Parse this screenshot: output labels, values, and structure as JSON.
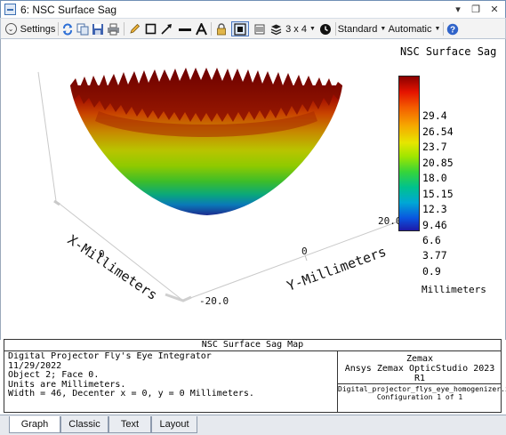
{
  "window": {
    "title": "6: NSC Surface Sag",
    "controls": {
      "dropdown": "▾",
      "restore": "❐",
      "close": "✕"
    }
  },
  "toolbar": {
    "settings_label": "Settings",
    "layout_label": "3 x 4",
    "standard_label": "Standard",
    "automatic_label": "Automatic",
    "icons": [
      "settings-chevron-icon",
      "refresh-icon",
      "copy-icon",
      "save-icon",
      "print-icon",
      "pencil-icon",
      "rectangle-icon",
      "arrow-icon",
      "line-icon",
      "text-icon",
      "lock-icon",
      "fit-icon",
      "layers-icon",
      "stack-icon",
      "clock-icon",
      "help-icon"
    ]
  },
  "plot": {
    "x_axis_label": "X-Millimeters",
    "y_axis_label": "Y-Millimeters",
    "x_ticks": [
      "0",
      "-20.0"
    ],
    "y_ticks": [
      "0",
      "20.0"
    ]
  },
  "legend": {
    "title": "NSC Surface Sag",
    "ticks": [
      "29.4",
      "26.54",
      "23.7",
      "20.85",
      "18.0",
      "15.15",
      "12.3",
      "9.46",
      "6.6",
      "3.77",
      "0.9"
    ],
    "units": "Millimeters",
    "colors": {
      "max": "#8a0000",
      "mid": "#e6e600",
      "min": "#1e1aa8"
    }
  },
  "info": {
    "title": "NSC Surface Sag Map",
    "left_lines": [
      "Digital Projector Fly's Eye Integrator",
      "11/29/2022",
      "Object 2; Face 0.",
      "",
      "Units are Millimeters.",
      "",
      "Width = 46, Decenter x = 0, y = 0 Millimeters."
    ],
    "company": "Zemax",
    "product": "Ansys Zemax OpticStudio 2023 R1",
    "file": "Digital_projector_flys_eye_homogenizer.zos",
    "configuration": "Configuration 1 of 1"
  },
  "tabs": [
    {
      "label": "Graph",
      "active": true
    },
    {
      "label": "Classic",
      "active": false
    },
    {
      "label": "Text",
      "active": false
    },
    {
      "label": "Layout",
      "active": false
    }
  ]
}
